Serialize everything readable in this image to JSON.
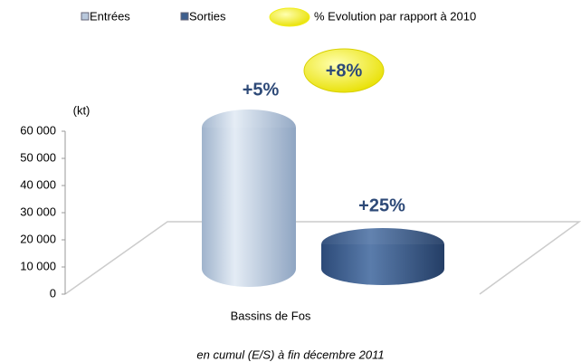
{
  "chart_data": {
    "type": "bar3d",
    "y_label": "(kt)",
    "categories": [
      "Bassins de Fos"
    ],
    "series": [
      {
        "name": "Entrées",
        "color": "#b8c8dc",
        "values": [
          52000
        ]
      },
      {
        "name": "Sorties",
        "color": "#3e5f8e",
        "values": [
          9000
        ]
      }
    ],
    "evolution_legend": "% Evolution par rapport à 2010",
    "evolution_color": "#f2ee1c",
    "annotations": [
      "+5%",
      "+25%",
      "+8%"
    ],
    "footnote": "en cumul (E/S) à fin décembre 2011",
    "ylim": [
      0,
      60000
    ],
    "yticks": [
      0,
      {
        "value": 10000,
        "label": "10 000"
      },
      {
        "value": 20000,
        "label": "20 000"
      },
      {
        "value": 30000,
        "label": "30 000"
      },
      {
        "value": 40000,
        "label": "40 000"
      },
      {
        "value": 50000,
        "label": "50 000"
      },
      {
        "value": 60000,
        "label": "60 000"
      }
    ]
  }
}
